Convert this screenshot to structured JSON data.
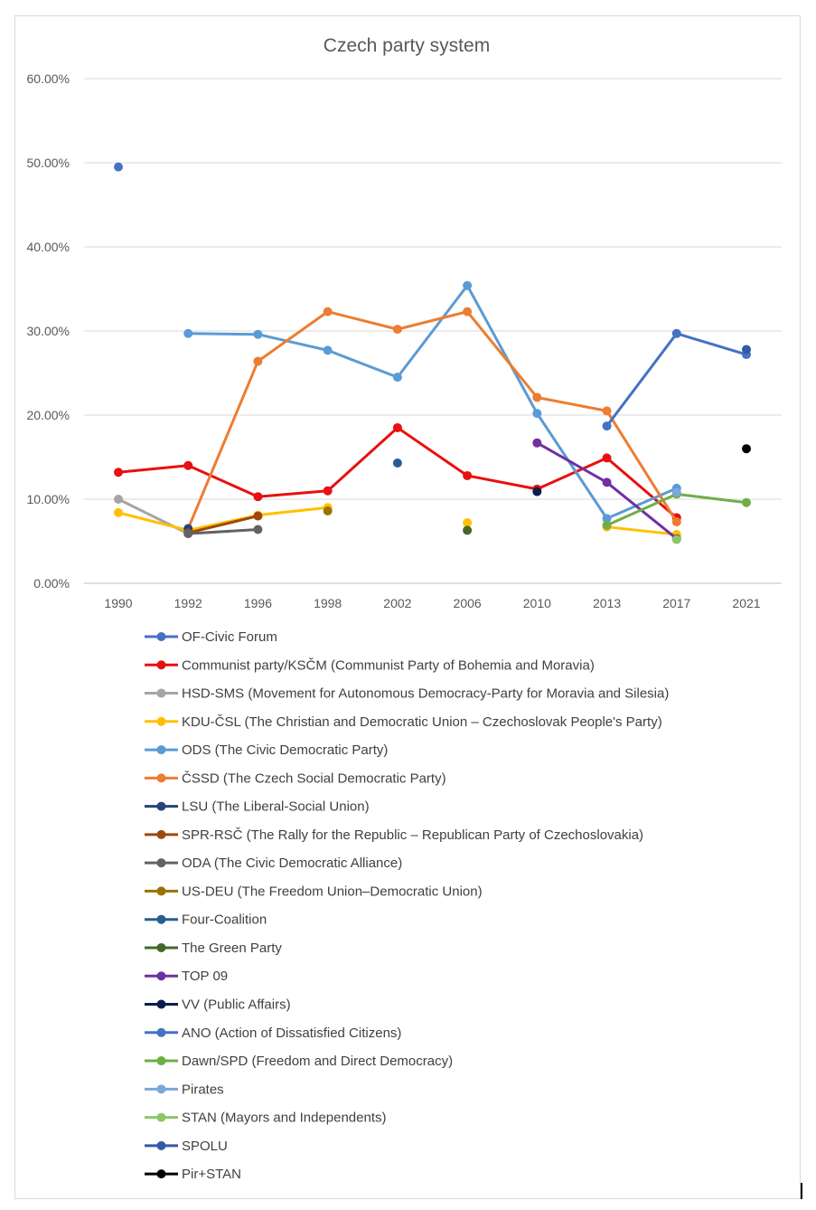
{
  "chart_data": {
    "type": "line",
    "title": "Czech party system",
    "xlabel": "",
    "ylabel": "",
    "ylim": [
      0,
      0.6
    ],
    "yticks": [
      "0.00%",
      "10.00%",
      "20.00%",
      "30.00%",
      "40.00%",
      "50.00%",
      "60.00%"
    ],
    "grid": true,
    "legend_position": "bottom",
    "categories": [
      "1990",
      "1992",
      "1996",
      "1998",
      "2002",
      "2006",
      "2010",
      "2013",
      "2017",
      "2021"
    ],
    "series": [
      {
        "name": "OF-Civic Forum",
        "color": "#4472C4",
        "values": [
          0.495,
          null,
          null,
          null,
          null,
          null,
          null,
          null,
          null,
          null
        ]
      },
      {
        "name": "Communist party/KSČM (Communist Party of Bohemia and Moravia)",
        "color": "#E81010",
        "values": [
          0.132,
          0.14,
          0.103,
          0.11,
          0.185,
          0.128,
          0.112,
          0.149,
          0.078,
          null
        ]
      },
      {
        "name": "HSD-SMS (Movement for Autonomous Democracy-Party for Moravia and Silesia)",
        "color": "#A5A5A5",
        "values": [
          0.1,
          0.059,
          null,
          null,
          null,
          null,
          null,
          null,
          null,
          null
        ]
      },
      {
        "name": "KDU-ČSL (The Christian and Democratic Union – Czechoslovak People's Party)",
        "color": "#FFC000",
        "values": [
          0.084,
          0.063,
          0.081,
          0.09,
          null,
          0.072,
          null,
          0.067,
          0.058,
          null
        ]
      },
      {
        "name": "ODS (The Civic Democratic Party)",
        "color": "#5B9BD5",
        "values": [
          null,
          0.297,
          0.296,
          0.277,
          0.245,
          0.354,
          0.202,
          0.077,
          0.113,
          null
        ]
      },
      {
        "name": "ČSSD (The Czech Social Democratic Party)",
        "color": "#ED7D31",
        "values": [
          null,
          0.065,
          0.264,
          0.323,
          0.302,
          0.323,
          0.221,
          0.205,
          0.073,
          null
        ]
      },
      {
        "name": "LSU (The Liberal-Social Union)",
        "color": "#264478",
        "values": [
          null,
          0.065,
          null,
          null,
          null,
          null,
          null,
          null,
          null,
          null
        ]
      },
      {
        "name": "SPR-RSČ (The Rally for the Republic – Republican Party of Czechoslovakia)",
        "color": "#9E480E",
        "values": [
          null,
          0.06,
          0.08,
          null,
          null,
          null,
          null,
          null,
          null,
          null
        ]
      },
      {
        "name": "ODA (The Civic Democratic Alliance)",
        "color": "#636363",
        "values": [
          null,
          0.059,
          0.064,
          null,
          null,
          null,
          null,
          null,
          null,
          null
        ]
      },
      {
        "name": "US-DEU (The Freedom Union–Democratic Union)",
        "color": "#997300",
        "values": [
          null,
          null,
          null,
          0.086,
          null,
          null,
          null,
          null,
          null,
          null
        ]
      },
      {
        "name": "Four-Coalition",
        "color": "#255E91",
        "values": [
          null,
          null,
          null,
          null,
          0.143,
          null,
          null,
          null,
          null,
          null
        ]
      },
      {
        "name": "The Green Party",
        "color": "#43682B",
        "values": [
          null,
          null,
          null,
          null,
          null,
          0.063,
          null,
          null,
          null,
          null
        ]
      },
      {
        "name": "TOP 09",
        "color": "#7030A0",
        "values": [
          null,
          null,
          null,
          null,
          null,
          null,
          0.167,
          0.12,
          0.053,
          null
        ]
      },
      {
        "name": "VV (Public Affairs)",
        "color": "#0B1D4D",
        "values": [
          null,
          null,
          null,
          null,
          null,
          null,
          0.109,
          null,
          null,
          null
        ]
      },
      {
        "name": "ANO (Action of Dissatisfied Citizens)",
        "color": "#4472C4",
        "values": [
          null,
          null,
          null,
          null,
          null,
          null,
          null,
          0.187,
          0.297,
          0.272
        ]
      },
      {
        "name": "Dawn/SPD (Freedom and Direct Democracy)",
        "color": "#70AD47",
        "values": [
          null,
          null,
          null,
          null,
          null,
          null,
          null,
          0.069,
          0.106,
          0.096
        ]
      },
      {
        "name": "Pirates",
        "color": "#7BA7D9",
        "values": [
          null,
          null,
          null,
          null,
          null,
          null,
          null,
          null,
          0.108,
          null
        ]
      },
      {
        "name": "STAN (Mayors and Independents)",
        "color": "#8BC766",
        "values": [
          null,
          null,
          null,
          null,
          null,
          null,
          null,
          null,
          0.052,
          null
        ]
      },
      {
        "name": "SPOLU",
        "color": "#335AA8",
        "values": [
          null,
          null,
          null,
          null,
          null,
          null,
          null,
          null,
          null,
          0.278
        ]
      },
      {
        "name": "Pir+STAN",
        "color": "#000000",
        "values": [
          null,
          null,
          null,
          null,
          null,
          null,
          null,
          null,
          null,
          0.16
        ]
      }
    ]
  }
}
